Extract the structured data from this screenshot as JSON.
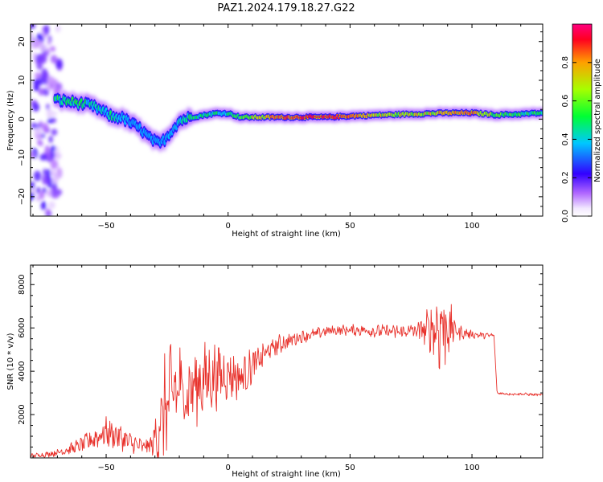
{
  "title": "PAZ1.2024.179.18.27.G22",
  "chart_data": [
    {
      "type": "heatmap",
      "xlabel": "Height of straight line (km)",
      "ylabel": "Frequency (Hz)",
      "xlim": [
        -81,
        129
      ],
      "ylim": [
        -25,
        24.5
      ],
      "xticks": [
        -50,
        0,
        50,
        100
      ],
      "yticks": [
        -20,
        -10,
        0,
        10,
        20
      ],
      "colorbar": {
        "label": "Normalized spectral amplitude",
        "range": [
          0,
          1
        ],
        "ticks": [
          0.0,
          0.2,
          0.4,
          0.6,
          0.8
        ],
        "tick_labels": [
          "0.0",
          "0.2",
          "0.4",
          "0.6",
          "0.8"
        ],
        "colormap": "gist_rainbow_r"
      },
      "ridge": {
        "x": [
          -71,
          -65,
          -60,
          -55,
          -50,
          -47,
          -44,
          -40,
          -36,
          -32,
          -28,
          -25,
          -22,
          -20,
          -18,
          -15,
          -10,
          -5,
          0,
          5,
          10,
          20,
          30,
          40,
          50,
          60,
          70,
          80,
          90,
          100,
          110,
          120,
          129
        ],
        "freq": [
          5,
          4.5,
          4,
          3.2,
          1.5,
          0.5,
          0.5,
          -1,
          -2.5,
          -5,
          -6.5,
          -4.5,
          -2,
          -0.5,
          0,
          0.5,
          1,
          1.5,
          1.5,
          0.5,
          0.5,
          0.5,
          0.5,
          0.5,
          0.8,
          1,
          1.2,
          1.4,
          1.6,
          1.6,
          1.1,
          1.3,
          1.6
        ],
        "amplitude": [
          0.5,
          0.55,
          0.5,
          0.45,
          0.4,
          0.5,
          0.4,
          0.35,
          0.3,
          0.35,
          0.3,
          0.35,
          0.4,
          0.45,
          0.5,
          0.5,
          0.5,
          0.5,
          0.5,
          0.6,
          0.7,
          0.85,
          0.9,
          0.9,
          0.85,
          0.75,
          0.7,
          0.72,
          0.8,
          0.85,
          0.6,
          0.55,
          0.5
        ]
      },
      "noise_region": {
        "x": [
          -81,
          -69
        ],
        "freq": [
          -25,
          24.5
        ]
      }
    },
    {
      "type": "line",
      "xlabel": "Height of straight line (km)",
      "ylabel": "SNR (10 * v/v)",
      "xlim": [
        -81,
        129
      ],
      "ylim": [
        0,
        8900
      ],
      "xticks": [
        -50,
        0,
        50,
        100
      ],
      "yticks": [
        2000,
        4000,
        6000,
        8000
      ],
      "series": [
        {
          "color": "#e8312b",
          "x": [
            -81,
            -75,
            -70,
            -65,
            -60,
            -55,
            -50,
            -45,
            -40,
            -35,
            -31,
            -28,
            -25,
            -22,
            -20,
            -18,
            -15,
            -10,
            -5,
            0,
            5,
            10,
            15,
            20,
            25,
            30,
            35,
            40,
            45,
            50,
            55,
            60,
            65,
            70,
            75,
            80,
            85,
            88,
            90,
            95,
            100,
            105,
            109,
            110,
            115,
            120,
            129
          ],
          "y": [
            100,
            150,
            250,
            400,
            600,
            900,
            1200,
            1000,
            700,
            500,
            600,
            1500,
            2500,
            3000,
            3200,
            3000,
            3200,
            3600,
            3800,
            3900,
            3700,
            4200,
            4800,
            5200,
            5400,
            5600,
            5700,
            5850,
            5900,
            5900,
            5900,
            5850,
            5850,
            5800,
            5850,
            5900,
            6000,
            6100,
            6000,
            5800,
            5700,
            5650,
            5650,
            3000,
            2950,
            2950,
            2900
          ],
          "amplitude": [
            80,
            100,
            150,
            200,
            300,
            450,
            550,
            500,
            400,
            300,
            400,
            1800,
            2200,
            2000,
            1800,
            1600,
            1500,
            1400,
            1300,
            1000,
            800,
            700,
            500,
            400,
            300,
            250,
            220,
            200,
            200,
            200,
            220,
            240,
            260,
            300,
            400,
            500,
            1200,
            2200,
            1200,
            300,
            150,
            120,
            100,
            60,
            50,
            50,
            50
          ]
        }
      ]
    }
  ]
}
